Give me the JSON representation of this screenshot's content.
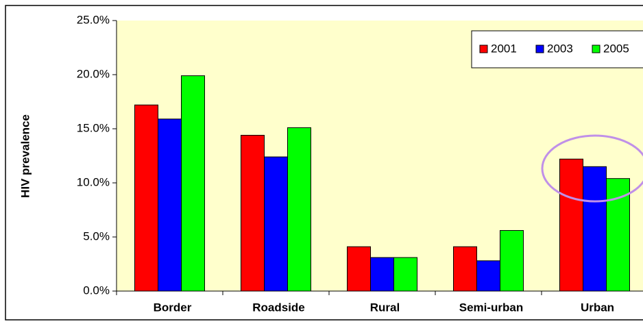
{
  "chart_data": {
    "type": "bar",
    "y_label": "HIV prevalence",
    "categories": [
      "Border",
      "Roadside",
      "Rural",
      "Semi-urban",
      "Urban"
    ],
    "series": [
      {
        "name": "2001",
        "color": "#ff0000",
        "values": [
          17.2,
          14.4,
          4.1,
          4.1,
          12.2
        ]
      },
      {
        "name": "2003",
        "color": "#0000ff",
        "values": [
          15.9,
          12.4,
          3.1,
          2.8,
          11.5
        ]
      },
      {
        "name": "2005",
        "color": "#00ff00",
        "values": [
          19.9,
          15.1,
          3.1,
          5.6,
          10.4
        ]
      }
    ],
    "ylim": [
      0,
      25
    ],
    "yticks": [
      {
        "value": 0,
        "label": "0.0%"
      },
      {
        "value": 5,
        "label": "5.0%"
      },
      {
        "value": 10,
        "label": "10.0%"
      },
      {
        "value": 15,
        "label": "15.0%"
      },
      {
        "value": 20,
        "label": "20.0%"
      },
      {
        "value": 25,
        "label": "25.0%"
      }
    ],
    "grid": false,
    "legend": "top-right",
    "background": "#ffffcc"
  }
}
